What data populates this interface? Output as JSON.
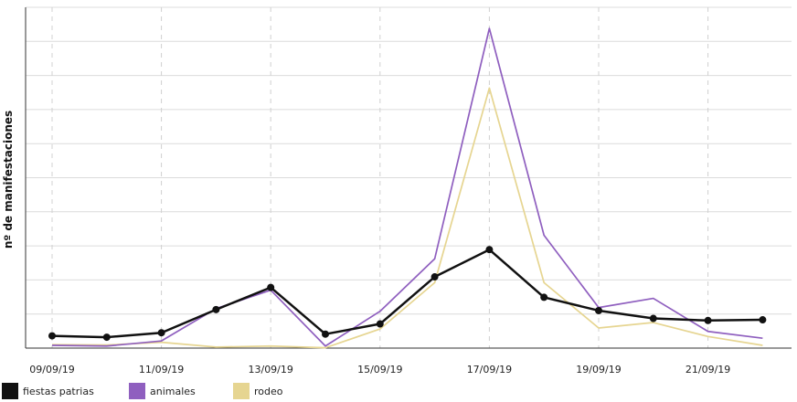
{
  "chart_data": {
    "type": "line",
    "ylabel": "nº de manifestaciones",
    "xlabel": "",
    "x": [
      "09/09/19",
      "10/09/19",
      "11/09/19",
      "12/09/19",
      "13/09/19",
      "14/09/19",
      "15/09/19",
      "16/09/19",
      "17/09/19",
      "18/09/19",
      "19/09/19",
      "20/09/19",
      "21/09/19",
      "22/09/19"
    ],
    "x_tick_labels": [
      "09/09/19",
      "11/09/19",
      "13/09/19",
      "15/09/19",
      "17/09/19",
      "19/09/19",
      "21/09/19"
    ],
    "ylim": [
      0,
      100
    ],
    "grid": true,
    "legend_position": "bottom-left",
    "series": [
      {
        "name": "fiestas patrias",
        "color": "#111111",
        "markers": true,
        "values": [
          3.6,
          3.2,
          4.5,
          11.3,
          17.8,
          4.1,
          7.1,
          20.9,
          28.9,
          14.9,
          11.0,
          8.7,
          8.1,
          8.3
        ]
      },
      {
        "name": "animales",
        "color": "#8f5fbf",
        "markers": false,
        "values": [
          0.8,
          0.6,
          2.1,
          11.6,
          17.0,
          0.6,
          10.8,
          26.2,
          93.8,
          33.1,
          11.9,
          14.6,
          4.9,
          2.9
        ]
      },
      {
        "name": "rodeo",
        "color": "#e6d591",
        "markers": false,
        "values": [
          1.0,
          0.9,
          1.7,
          0.3,
          0.6,
          0.1,
          5.6,
          19.2,
          76.3,
          19.2,
          5.9,
          7.5,
          3.4,
          0.8
        ]
      }
    ]
  }
}
